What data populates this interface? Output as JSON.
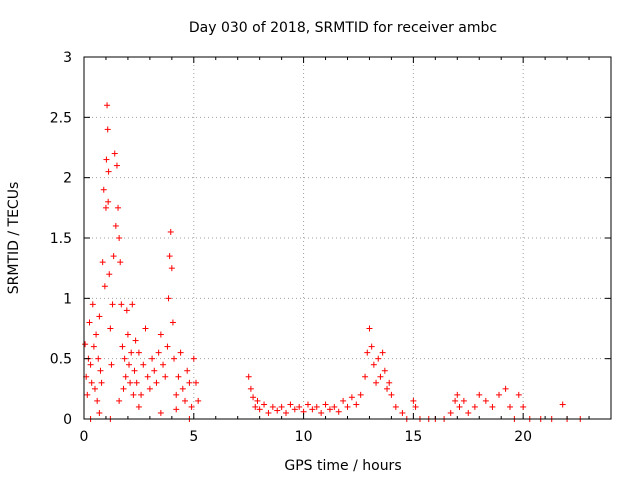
{
  "chart_data": {
    "type": "scatter",
    "title": "Day 030 of 2018, SRMTID for receiver ambc",
    "xlabel": "GPS time / hours",
    "ylabel": "SRMTID / TECUs",
    "xlim": [
      0,
      24
    ],
    "ylim": [
      0,
      3
    ],
    "xticks": [
      0,
      5,
      10,
      15,
      20
    ],
    "xtick_labels": [
      "0",
      "5",
      "10",
      "15",
      "20"
    ],
    "yticks": [
      0,
      0.5,
      1,
      1.5,
      2,
      2.5,
      3
    ],
    "ytick_labels": [
      "0",
      "0.5",
      "1",
      "1.5",
      "2",
      "2.5",
      "3"
    ],
    "grid": true,
    "marker": "+",
    "color": "#ff0000",
    "series": [
      {
        "name": "SRMTID",
        "points": [
          [
            0.05,
            0.62
          ],
          [
            0.1,
            0.35
          ],
          [
            0.15,
            0.2
          ],
          [
            0.2,
            0.5
          ],
          [
            0.25,
            0.8
          ],
          [
            0.3,
            0.45
          ],
          [
            0.35,
            0.3
          ],
          [
            0.4,
            0.95
          ],
          [
            0.45,
            0.6
          ],
          [
            0.5,
            0.25
          ],
          [
            0.55,
            0.7
          ],
          [
            0.6,
            0.15
          ],
          [
            0.65,
            0.5
          ],
          [
            0.7,
            0.85
          ],
          [
            0.75,
            0.4
          ],
          [
            0.8,
            0.3
          ],
          [
            0.85,
            1.3
          ],
          [
            0.9,
            1.9
          ],
          [
            0.95,
            1.1
          ],
          [
            1.0,
            1.75
          ],
          [
            1.02,
            2.15
          ],
          [
            1.05,
            2.6
          ],
          [
            1.08,
            2.4
          ],
          [
            1.1,
            1.8
          ],
          [
            1.12,
            2.05
          ],
          [
            1.15,
            1.2
          ],
          [
            1.2,
            0.75
          ],
          [
            1.25,
            0.45
          ],
          [
            1.3,
            0.95
          ],
          [
            1.35,
            1.35
          ],
          [
            1.4,
            2.2
          ],
          [
            1.45,
            1.6
          ],
          [
            1.5,
            2.1
          ],
          [
            1.55,
            1.75
          ],
          [
            1.6,
            1.5
          ],
          [
            1.65,
            1.3
          ],
          [
            1.7,
            0.95
          ],
          [
            1.75,
            0.6
          ],
          [
            1.8,
            0.25
          ],
          [
            1.85,
            0.5
          ],
          [
            1.9,
            0.35
          ],
          [
            1.95,
            0.9
          ],
          [
            2.0,
            0.7
          ],
          [
            2.05,
            0.45
          ],
          [
            2.1,
            0.3
          ],
          [
            2.15,
            0.55
          ],
          [
            2.2,
            0.95
          ],
          [
            2.25,
            0.2
          ],
          [
            2.3,
            0.4
          ],
          [
            2.35,
            0.65
          ],
          [
            2.4,
            0.3
          ],
          [
            2.5,
            0.55
          ],
          [
            2.6,
            0.2
          ],
          [
            2.7,
            0.45
          ],
          [
            2.8,
            0.75
          ],
          [
            2.9,
            0.35
          ],
          [
            3.0,
            0.25
          ],
          [
            3.1,
            0.5
          ],
          [
            3.2,
            0.4
          ],
          [
            3.3,
            0.3
          ],
          [
            3.4,
            0.55
          ],
          [
            3.5,
            0.7
          ],
          [
            3.6,
            0.45
          ],
          [
            3.7,
            0.35
          ],
          [
            3.8,
            0.6
          ],
          [
            3.85,
            1.0
          ],
          [
            3.9,
            1.35
          ],
          [
            3.95,
            1.55
          ],
          [
            4.0,
            1.25
          ],
          [
            4.05,
            0.8
          ],
          [
            4.1,
            0.5
          ],
          [
            4.2,
            0.2
          ],
          [
            4.3,
            0.35
          ],
          [
            4.4,
            0.55
          ],
          [
            4.5,
            0.25
          ],
          [
            4.6,
            0.15
          ],
          [
            4.7,
            0.4
          ],
          [
            4.8,
            0.3
          ],
          [
            4.9,
            0.1
          ],
          [
            5.0,
            0.5
          ],
          [
            5.1,
            0.3
          ],
          [
            5.2,
            0.15
          ],
          [
            0.3,
            0.0
          ],
          [
            1.2,
            0.0
          ],
          [
            4.8,
            0.0
          ],
          [
            0.7,
            0.05
          ],
          [
            2.5,
            0.1
          ],
          [
            3.5,
            0.05
          ],
          [
            4.2,
            0.08
          ],
          [
            1.6,
            0.15
          ],
          [
            7.5,
            0.35
          ],
          [
            7.6,
            0.25
          ],
          [
            7.7,
            0.18
          ],
          [
            7.8,
            0.1
          ],
          [
            7.9,
            0.15
          ],
          [
            8.0,
            0.08
          ],
          [
            8.2,
            0.12
          ],
          [
            8.4,
            0.05
          ],
          [
            8.6,
            0.1
          ],
          [
            8.8,
            0.07
          ],
          [
            9.0,
            0.1
          ],
          [
            9.2,
            0.05
          ],
          [
            9.4,
            0.12
          ],
          [
            9.6,
            0.08
          ],
          [
            9.8,
            0.1
          ],
          [
            10.0,
            0.06
          ],
          [
            10.2,
            0.12
          ],
          [
            10.4,
            0.08
          ],
          [
            10.6,
            0.1
          ],
          [
            10.8,
            0.05
          ],
          [
            11.0,
            0.12
          ],
          [
            11.2,
            0.08
          ],
          [
            11.4,
            0.1
          ],
          [
            11.6,
            0.06
          ],
          [
            11.8,
            0.15
          ],
          [
            12.0,
            0.1
          ],
          [
            12.2,
            0.18
          ],
          [
            12.4,
            0.12
          ],
          [
            12.6,
            0.2
          ],
          [
            12.8,
            0.35
          ],
          [
            12.9,
            0.55
          ],
          [
            13.0,
            0.75
          ],
          [
            13.1,
            0.6
          ],
          [
            13.2,
            0.45
          ],
          [
            13.3,
            0.3
          ],
          [
            13.4,
            0.5
          ],
          [
            13.5,
            0.35
          ],
          [
            13.6,
            0.55
          ],
          [
            13.7,
            0.4
          ],
          [
            13.8,
            0.25
          ],
          [
            13.9,
            0.3
          ],
          [
            14.0,
            0.2
          ],
          [
            14.2,
            0.1
          ],
          [
            14.5,
            0.05
          ],
          [
            14.7,
            0.0
          ],
          [
            15.0,
            0.15
          ],
          [
            15.1,
            0.1
          ],
          [
            15.3,
            0.0
          ],
          [
            15.7,
            0.0
          ],
          [
            16.0,
            0.0
          ],
          [
            16.4,
            0.0
          ],
          [
            16.7,
            0.05
          ],
          [
            16.9,
            0.15
          ],
          [
            17.0,
            0.2
          ],
          [
            17.1,
            0.1
          ],
          [
            17.3,
            0.15
          ],
          [
            17.5,
            0.05
          ],
          [
            17.8,
            0.1
          ],
          [
            18.0,
            0.2
          ],
          [
            18.3,
            0.15
          ],
          [
            18.6,
            0.1
          ],
          [
            18.9,
            0.2
          ],
          [
            19.2,
            0.25
          ],
          [
            19.4,
            0.1
          ],
          [
            19.6,
            0.0
          ],
          [
            19.8,
            0.2
          ],
          [
            20.0,
            0.1
          ],
          [
            20.3,
            0.0
          ],
          [
            20.8,
            0.0
          ],
          [
            21.3,
            0.0
          ],
          [
            21.8,
            0.12
          ],
          [
            22.0,
            0.0
          ],
          [
            22.6,
            0.0
          ]
        ]
      }
    ]
  }
}
